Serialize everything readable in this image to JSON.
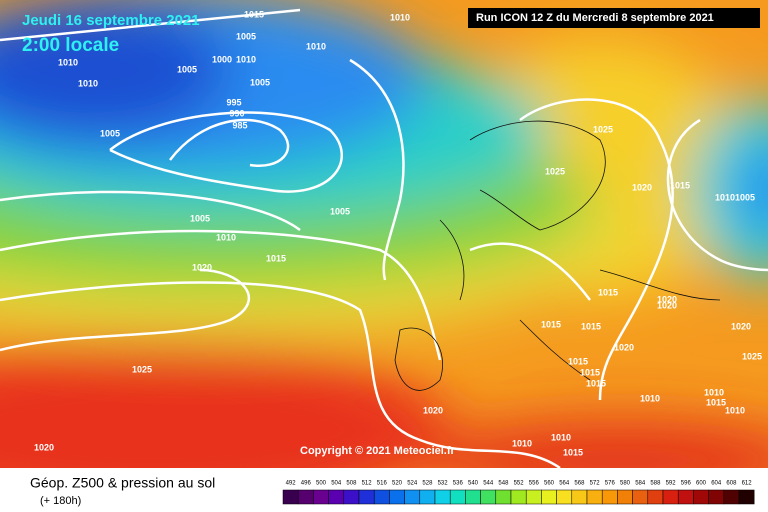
{
  "header": {
    "date": "Jeudi 16 septembre 2021",
    "time": "2:00 locale",
    "run": "Run ICON 12 Z du Mercredi 8 septembre 2021"
  },
  "copyright": "Copyright © 2021 Meteociel.fr",
  "isobar_labels": [
    "1010",
    "1015",
    "1005",
    "1010",
    "1010",
    "1005",
    "1005",
    "1010",
    "1010",
    "1005",
    "1000",
    "995",
    "990",
    "985",
    "1005",
    "1005",
    "1010",
    "1020",
    "1015",
    "1025",
    "1025",
    "1025",
    "1020",
    "1015",
    "10101005",
    "1015",
    "1015",
    "1015",
    "1020",
    "1020",
    "1020",
    "1015",
    "1015",
    "1015",
    "1020",
    "1025",
    "1020",
    "1010",
    "1010",
    "1010",
    "1015",
    "1020",
    "1015",
    "1010",
    "1010"
  ],
  "footer": {
    "title": "Géop. Z500 & pression au sol",
    "lead": "(+ 180h)",
    "scale": [
      492,
      496,
      500,
      504,
      508,
      512,
      516,
      520,
      524,
      528,
      532,
      536,
      540,
      544,
      548,
      552,
      556,
      560,
      564,
      568,
      572,
      576,
      580,
      584,
      588,
      592,
      596,
      600,
      604,
      608,
      612
    ]
  }
}
